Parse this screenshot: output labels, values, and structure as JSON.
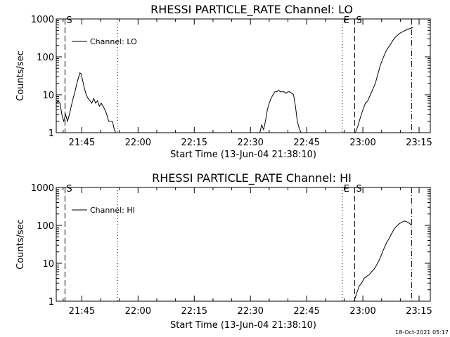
{
  "footer_timestamp": "18-Oct-2021 05:17",
  "chart_data": [
    {
      "type": "line",
      "title": "RHESSI PARTICLE_RATE Channel: LO",
      "xlabel": "Start Time (13-Jun-04 21:38:10)",
      "ylabel": "Counts/sec",
      "legend": "Channel: LO",
      "legend_position": "top-left",
      "scale_y": "log",
      "xlim": [
        "21:38:10",
        "23:18:00"
      ],
      "ylim": [
        1,
        1000
      ],
      "x_ticks": [
        "21:45",
        "22:00",
        "22:15",
        "22:30",
        "22:45",
        "23:00",
        "23:15"
      ],
      "y_ticks": [
        "1",
        "10",
        "100",
        "1000"
      ],
      "markers": [
        {
          "label": "S",
          "time": "21:40:30",
          "style": "dashed"
        },
        {
          "label": "",
          "time": "21:54:30",
          "style": "dotted"
        },
        {
          "label": "E",
          "time": "22:54:30",
          "style": "dotted"
        },
        {
          "label": "S",
          "time": "22:57:50",
          "style": "dashed"
        },
        {
          "label": "",
          "time": "23:13:00",
          "style": "dashdot"
        }
      ],
      "series": [
        {
          "name": "Channel: LO",
          "segments": [
            {
              "x": [
                "21:38:10",
                "21:38:40",
                "21:39:10",
                "21:39:40",
                "21:40:10",
                "21:40:40",
                "21:41:10",
                "21:41:40",
                "21:42:10",
                "21:42:40",
                "21:43:10",
                "21:43:40",
                "21:44:10",
                "21:44:30",
                "21:44:50",
                "21:45:10",
                "21:45:40",
                "21:46:10",
                "21:46:40",
                "21:47:10",
                "21:47:40",
                "21:48:10",
                "21:48:40",
                "21:49:10",
                "21:49:40",
                "21:50:10",
                "21:50:40",
                "21:51:10",
                "21:51:40",
                "21:52:10",
                "21:52:40",
                "21:53:10",
                "21:53:40",
                "21:54:00"
              ],
              "y": [
                6,
                7,
                6,
                3,
                2,
                3,
                2,
                3,
                5,
                8,
                12,
                20,
                30,
                38,
                35,
                25,
                15,
                10,
                8,
                7,
                6,
                8,
                6,
                7,
                5,
                6,
                5,
                4,
                3,
                2,
                2,
                2,
                1.2,
                1
              ]
            },
            {
              "x": [
                "22:32:30",
                "22:33:00",
                "22:33:30",
                "22:34:00",
                "22:34:30",
                "22:35:00",
                "22:35:30",
                "22:36:00",
                "22:36:30",
                "22:37:00",
                "22:37:30",
                "22:38:00",
                "22:38:30",
                "22:39:00",
                "22:39:30",
                "22:40:00",
                "22:40:30",
                "22:41:00",
                "22:41:30",
                "22:42:00",
                "22:42:30",
                "22:43:00",
                "22:43:30"
              ],
              "y": [
                1,
                1.6,
                1.2,
                2,
                4,
                6,
                8,
                10,
                12,
                12,
                13,
                12,
                12,
                12,
                11,
                12,
                12,
                11,
                10,
                5,
                2,
                1.3,
                1
              ]
            },
            {
              "x": [
                "22:58:00",
                "22:58:40",
                "22:59:20",
                "23:00:00",
                "23:00:40",
                "23:01:20",
                "23:02:00",
                "23:02:40",
                "23:03:20",
                "23:04:00",
                "23:04:40",
                "23:05:20",
                "23:06:00",
                "23:06:40",
                "23:07:20",
                "23:08:00",
                "23:08:40",
                "23:09:20",
                "23:10:00",
                "23:10:40",
                "23:11:20",
                "23:12:00",
                "23:12:40",
                "23:13:20"
              ],
              "y": [
                1,
                1.5,
                2.5,
                4,
                6,
                7,
                10,
                14,
                20,
                35,
                60,
                90,
                130,
                170,
                210,
                270,
                330,
                380,
                430,
                460,
                500,
                540,
                560,
                600
              ]
            }
          ]
        }
      ]
    },
    {
      "type": "line",
      "title": "RHESSI PARTICLE_RATE Channel: HI",
      "xlabel": "Start Time (13-Jun-04 21:38:10)",
      "ylabel": "Counts/sec",
      "legend": "Channel: HI",
      "legend_position": "top-left",
      "scale_y": "log",
      "xlim": [
        "21:38:10",
        "23:18:00"
      ],
      "ylim": [
        1,
        1000
      ],
      "x_ticks": [
        "21:45",
        "22:00",
        "22:15",
        "22:30",
        "22:45",
        "23:00",
        "23:15"
      ],
      "y_ticks": [
        "1",
        "10",
        "100",
        "1000"
      ],
      "markers": [
        {
          "label": "S",
          "time": "21:40:30",
          "style": "dashed"
        },
        {
          "label": "",
          "time": "21:54:30",
          "style": "dotted"
        },
        {
          "label": "E",
          "time": "22:54:30",
          "style": "dotted"
        },
        {
          "label": "S",
          "time": "22:57:50",
          "style": "dashed"
        },
        {
          "label": "",
          "time": "23:13:00",
          "style": "dashdot"
        }
      ],
      "series": [
        {
          "name": "Channel: HI",
          "segments": [
            {
              "x": [
                "22:57:40",
                "22:58:20",
                "22:59:00",
                "22:59:40",
                "23:00:20",
                "23:01:00",
                "23:01:40",
                "23:02:20",
                "23:03:00",
                "23:03:40",
                "23:04:20",
                "23:05:00",
                "23:05:40",
                "23:06:20",
                "23:07:00",
                "23:07:40",
                "23:08:20",
                "23:09:00",
                "23:09:40",
                "23:10:20",
                "23:11:00",
                "23:11:40",
                "23:12:20",
                "23:13:00"
              ],
              "y": [
                1,
                1.6,
                2.5,
                3,
                4,
                4.5,
                5,
                6,
                7,
                9,
                12,
                17,
                25,
                35,
                45,
                60,
                80,
                95,
                110,
                120,
                130,
                125,
                115,
                100
              ]
            }
          ]
        }
      ]
    }
  ]
}
